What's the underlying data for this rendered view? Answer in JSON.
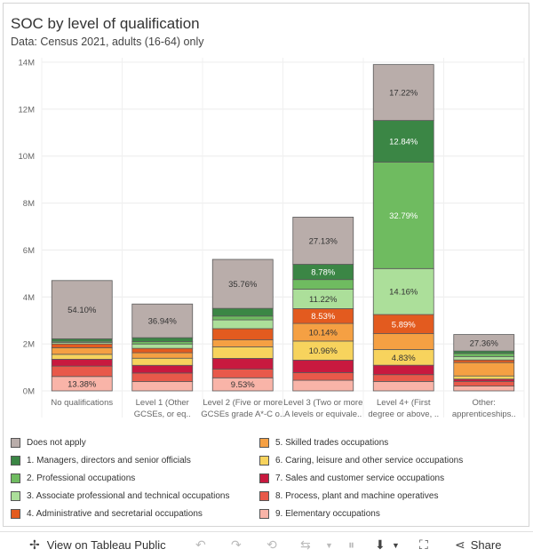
{
  "title": "SOC by level of qualification",
  "subtitle": "Data: Census 2021, adults (16-64) only",
  "chart_data": {
    "type": "stacked-bar",
    "ylim": [
      0,
      14000000
    ],
    "yticks": [
      "0M",
      "2M",
      "4M",
      "6M",
      "8M",
      "10M",
      "12M",
      "14M"
    ],
    "ytick_values": [
      0,
      2000000,
      4000000,
      6000000,
      8000000,
      10000000,
      12000000,
      14000000
    ],
    "categories": [
      [
        "No qualifications"
      ],
      [
        "Level 1 (Other",
        "GCSEs, or eq.."
      ],
      [
        "Level 2 (Five or more",
        "GCSEs grade A*-C o.."
      ],
      [
        "Level 3 (Two or more",
        "A levels or equivale.."
      ],
      [
        "Level 4+ (First",
        "degree or above, .."
      ],
      [
        "Other:",
        "apprenticeships.."
      ]
    ],
    "totals": [
      4700000,
      3700000,
      5600000,
      7400000,
      13900000,
      2400000
    ],
    "series": [
      {
        "name": "9. Elementary occupations",
        "color": "#f9b4a8",
        "percent": [
          13.38,
          10.2,
          9.53,
          6.1,
          2.9,
          8.0
        ]
      },
      {
        "name": "8. Process, plant and machine operatives",
        "color": "#e8594a",
        "percent": [
          9.6,
          9.4,
          6.3,
          4.4,
          2.1,
          7.8
        ]
      },
      {
        "name": "7. Sales and customer service occupations",
        "color": "#c8193f",
        "percent": [
          6.4,
          8.4,
          7.9,
          7.2,
          2.9,
          3.8
        ]
      },
      {
        "name": "6. Caring, leisure and other service occupations",
        "color": "#f7d35d",
        "percent": [
          4.6,
          7.8,
          8.4,
          10.96,
          4.83,
          5.2
        ]
      },
      {
        "name": "5. Skilled trades occupations",
        "color": "#f5a043",
        "percent": [
          6.1,
          6.0,
          5.1,
          10.14,
          4.9,
          22.2
        ]
      },
      {
        "name": "4. Administrative and secretarial occupations",
        "color": "#e35b1f",
        "percent": [
          3.5,
          4.8,
          8.2,
          8.53,
          5.89,
          4.3
        ]
      },
      {
        "name": "3. Associate professional and technical occupations",
        "color": "#acdf9a",
        "percent": [
          1.5,
          4.8,
          6.4,
          11.22,
          14.16,
          5.7
        ]
      },
      {
        "name": "2. Professional occupations",
        "color": "#6fbb60",
        "percent": [
          1.0,
          2.7,
          2.8,
          5.5,
          32.79,
          5.2
        ]
      },
      {
        "name": "1. Managers, directors and senior officials",
        "color": "#3b8645",
        "percent": [
          2.3,
          4.2,
          5.6,
          8.78,
          12.84,
          4.0
        ]
      },
      {
        "name": "Does not apply",
        "color": "#b9adaa",
        "percent": [
          54.1,
          36.94,
          35.76,
          27.13,
          17.22,
          27.36
        ]
      }
    ],
    "data_labels": [
      {
        "bar": 0,
        "series": "9. Elementary occupations",
        "text": "13.38%"
      },
      {
        "bar": 0,
        "series": "Does not apply",
        "text": "54.10%"
      },
      {
        "bar": 1,
        "series": "Does not apply",
        "text": "36.94%"
      },
      {
        "bar": 2,
        "series": "9. Elementary occupations",
        "text": "9.53%"
      },
      {
        "bar": 2,
        "series": "Does not apply",
        "text": "35.76%"
      },
      {
        "bar": 3,
        "series": "6. Caring, leisure and other service occupations",
        "text": "10.96%"
      },
      {
        "bar": 3,
        "series": "5. Skilled trades occupations",
        "text": "10.14%"
      },
      {
        "bar": 3,
        "series": "4. Administrative and secretarial occupations",
        "text": "8.53%"
      },
      {
        "bar": 3,
        "series": "3. Associate professional and technical occupations",
        "text": "11.22%"
      },
      {
        "bar": 3,
        "series": "1. Managers, directors and senior officials",
        "text": "8.78%"
      },
      {
        "bar": 3,
        "series": "Does not apply",
        "text": "27.13%"
      },
      {
        "bar": 4,
        "series": "6. Caring, leisure and other service occupations",
        "text": "4.83%"
      },
      {
        "bar": 4,
        "series": "4. Administrative and secretarial occupations",
        "text": "5.89%"
      },
      {
        "bar": 4,
        "series": "3. Associate professional and technical occupations",
        "text": "14.16%"
      },
      {
        "bar": 4,
        "series": "2. Professional occupations",
        "text": "32.79%"
      },
      {
        "bar": 4,
        "series": "1. Managers, directors and senior officials",
        "text": "12.84%"
      },
      {
        "bar": 4,
        "series": "Does not apply",
        "text": "17.22%"
      },
      {
        "bar": 5,
        "series": "Does not apply",
        "text": "27.36%"
      }
    ],
    "grid": true,
    "legend_position": "bottom"
  },
  "legend": {
    "left": [
      {
        "label": "Does not apply",
        "color": "#b9adaa"
      },
      {
        "label": "1. Managers, directors and senior officials",
        "color": "#3b8645"
      },
      {
        "label": "2. Professional occupations",
        "color": "#6fbb60"
      },
      {
        "label": "3. Associate professional and technical occupations",
        "color": "#acdf9a"
      },
      {
        "label": "4. Administrative and secretarial occupations",
        "color": "#e35b1f"
      }
    ],
    "right": [
      {
        "label": "5. Skilled trades occupations",
        "color": "#f5a043"
      },
      {
        "label": "6. Caring, leisure and other service occupations",
        "color": "#f7d35d"
      },
      {
        "label": "7. Sales and customer service occupations",
        "color": "#c8193f"
      },
      {
        "label": "8. Process, plant and machine operatives",
        "color": "#e8594a"
      },
      {
        "label": "9. Elementary occupations",
        "color": "#f9b4a8"
      }
    ]
  },
  "toolbar": {
    "view_label": "View on Tableau Public",
    "share_label": "Share"
  }
}
